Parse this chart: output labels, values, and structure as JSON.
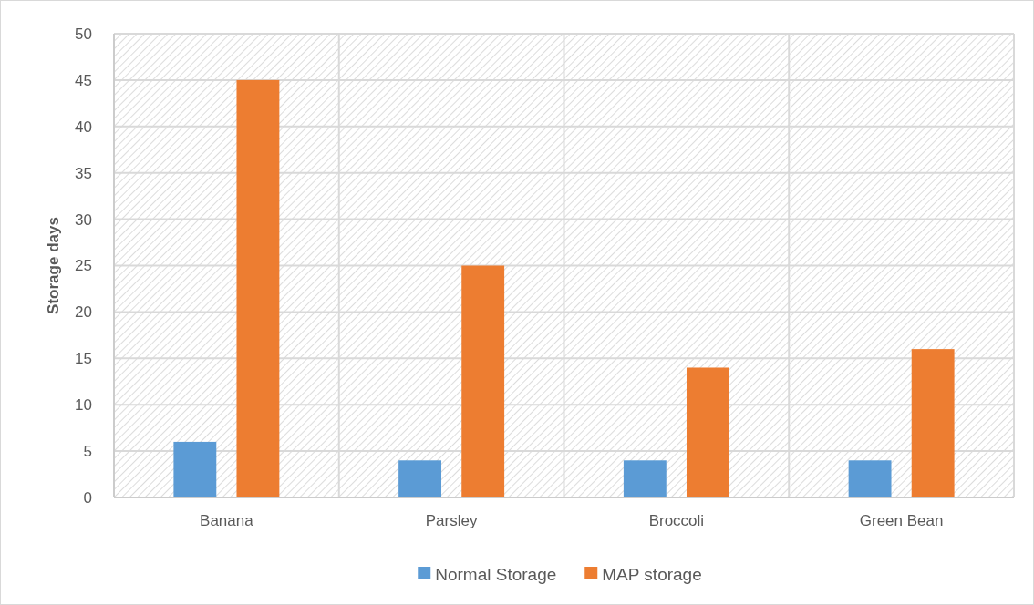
{
  "chart_data": {
    "type": "bar",
    "ylabel": "Storage days",
    "categories": [
      "Banana",
      "Parsley",
      "Broccoli",
      "Green Bean"
    ],
    "series": [
      {
        "name": "Normal Storage",
        "color": "#5b9bd5",
        "values": [
          6,
          4,
          4,
          4
        ]
      },
      {
        "name": "MAP storage",
        "color": "#ed7d31",
        "values": [
          45,
          25,
          14,
          16
        ]
      }
    ],
    "ylim": [
      0,
      50
    ],
    "yticks": [
      0,
      5,
      10,
      15,
      20,
      25,
      30,
      35,
      40,
      45,
      50
    ],
    "grid": true,
    "legend": "bottom"
  }
}
